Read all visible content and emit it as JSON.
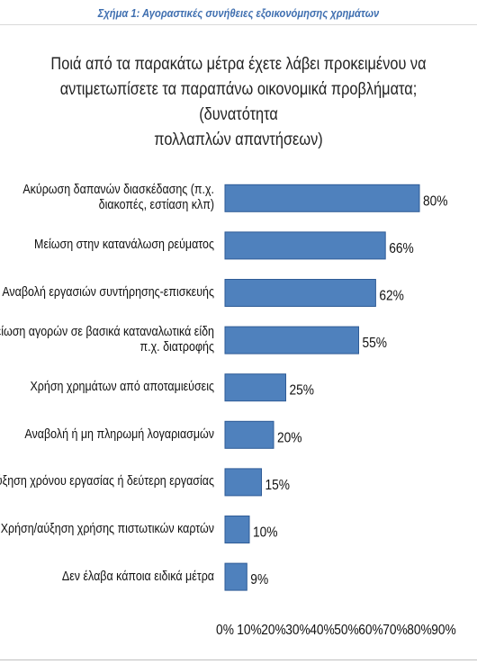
{
  "caption": "Σχήμα 1: Αγοραστικές συνήθειες εξοικονόμησης χρημάτων",
  "chart_data": {
    "type": "bar",
    "orientation": "horizontal",
    "title": "Ποιά από τα παρακάτω μέτρα έχετε λάβει προκειμένου να αντιμετωπίσετε τα παραπάνω οικονομικά προβλήματα; (δυνατότητα πολλαπλών απαντήσεων)",
    "title_lines": [
      "Ποιά από τα παρακάτω μέτρα έχετε λάβει προκειμένου να",
      "αντιμετωπίσετε τα παραπάνω οικονομικά προβλήματα; (δυνατότητα",
      "πολλαπλών απαντήσεων)"
    ],
    "categories": [
      [
        "Ακύρωση δαπανών διασκέδασης (π.χ.",
        "διακοπές, εστίαση κλπ)"
      ],
      [
        "Μείωση στην κατανάλωση ρεύματος"
      ],
      [
        "Αναβολή εργασιών συντήρησης-επισκευής"
      ],
      [
        "Μείωση αγορών σε βασικά καταναλωτικά είδη",
        "π.χ. διατροφής"
      ],
      [
        "Χρήση χρημάτων από αποταμιεύσεις"
      ],
      [
        "Αναβολή ή μη πληρωμή λογαριασμών"
      ],
      [
        "Αύξηση χρόνου εργασίας ή δεύτερη εργασίας"
      ],
      [
        "Χρήση/αύξηση χρήσης πιστωτικών καρτών"
      ],
      [
        "Δεν έλαβα κάποια ειδικά μέτρα"
      ]
    ],
    "values": [
      80,
      66,
      62,
      55,
      25,
      20,
      15,
      10,
      9
    ],
    "value_labels": [
      "80%",
      "66%",
      "62%",
      "55%",
      "25%",
      "20%",
      "15%",
      "10%",
      "9%"
    ],
    "xlim": [
      0,
      90
    ],
    "x_ticks": [
      "0%",
      "10%",
      "20%",
      "30%",
      "40%",
      "50%",
      "60%",
      "70%",
      "80%",
      "90%"
    ],
    "grid": false,
    "legend": "none",
    "bar_color": "#4f81bd",
    "bar_edge_color": "#2e5b96"
  }
}
